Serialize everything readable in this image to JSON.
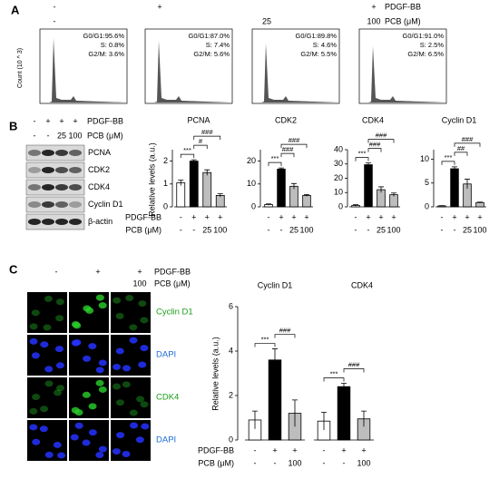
{
  "panel_a": {
    "label": "A",
    "row1": [
      "-",
      "+",
      null,
      "+"
    ],
    "row1_name": "PDGF-BB",
    "row2": [
      "-",
      null,
      "25",
      "100"
    ],
    "row2_name": "PCB (μM)",
    "y_label": "Count (10 ^ 3)",
    "histograms": [
      [
        "G0/G1:95.6%",
        "S:  0.8%",
        "G2/M:  3.6%"
      ],
      [
        "G0/G1:87.0%",
        "S:  7.4%",
        "G2/M:  5.6%"
      ],
      [
        "G0/G1:89.8%",
        "S:  4.6%",
        "G2/M:  5.5%"
      ],
      [
        "G0/G1:91.0%",
        "S:  2.5%",
        "G2/M:  6.5%"
      ]
    ]
  },
  "panel_b": {
    "label": "B",
    "row1": [
      "-",
      "+",
      "+",
      "+"
    ],
    "row1_name": "PDGF-BB",
    "row2": [
      "-",
      "-",
      "25",
      "100"
    ],
    "row2_name": "PCB (μM)",
    "bands": [
      "PCNA",
      "CDK2",
      "CDK4",
      "Cyclin D1",
      "β-actin"
    ],
    "chart_row_names": [
      "PDGF-BB",
      "PCB (μM)"
    ]
  },
  "panel_c": {
    "label": "C",
    "row1": [
      "-",
      "+",
      "+"
    ],
    "row1_name": "PDGF-BB",
    "row2": [
      null,
      null,
      "100"
    ],
    "row2_name": "PCB (μM)",
    "stains": [
      "Cyclin D1",
      "DAPI",
      "CDK4",
      "DAPI"
    ],
    "chart_row_names": [
      "PDGF-BB",
      "PCB (μM)"
    ]
  },
  "chart_data": [
    {
      "type": "bar",
      "title": "PCNA",
      "y_label": "Relative levels (a.u.)",
      "categories": [
        "-",
        "+",
        "+",
        "+"
      ],
      "categories2": [
        "-",
        "-",
        "25",
        "100"
      ],
      "values": [
        1.05,
        2.0,
        1.5,
        0.5
      ],
      "errors": [
        0.12,
        0.06,
        0.12,
        0.07
      ],
      "colors": [
        "#ffffff",
        "#000000",
        "#bdbdbd",
        "#bdbdbd"
      ],
      "ylim": [
        0,
        2.5
      ],
      "yticks": [
        0,
        1,
        2
      ],
      "annotations": [
        "***",
        "#",
        "###"
      ]
    },
    {
      "type": "bar",
      "title": "CDK2",
      "categories": [
        "-",
        "+",
        "+",
        "+"
      ],
      "categories2": [
        "-",
        "-",
        "25",
        "100"
      ],
      "values": [
        1,
        16.5,
        9,
        5
      ],
      "errors": [
        0.3,
        0.5,
        1.2,
        0.4
      ],
      "colors": [
        "#ffffff",
        "#000000",
        "#bdbdbd",
        "#bdbdbd"
      ],
      "ylim": [
        0,
        25
      ],
      "yticks": [
        0,
        10,
        20
      ],
      "annotations": [
        "***",
        "###",
        "###"
      ]
    },
    {
      "type": "bar",
      "title": "CDK4",
      "categories": [
        "-",
        "+",
        "+",
        "+"
      ],
      "categories2": [
        "-",
        "-",
        "25",
        "100"
      ],
      "values": [
        1,
        29.5,
        12,
        8.5
      ],
      "errors": [
        0.5,
        1.2,
        2,
        1.2
      ],
      "colors": [
        "#ffffff",
        "#000000",
        "#bdbdbd",
        "#bdbdbd"
      ],
      "ylim": [
        0,
        40
      ],
      "yticks": [
        0,
        10,
        20,
        30,
        40
      ],
      "annotations": [
        "***",
        "###",
        "###"
      ]
    },
    {
      "type": "bar",
      "title": "Cyclin D1",
      "categories": [
        "-",
        "+",
        "+",
        "+"
      ],
      "categories2": [
        "-",
        "-",
        "25",
        "100"
      ],
      "values": [
        0.2,
        8,
        4.8,
        0.9
      ],
      "errors": [
        0.05,
        0.4,
        1,
        0.1
      ],
      "colors": [
        "#ffffff",
        "#000000",
        "#bdbdbd",
        "#bdbdbd"
      ],
      "ylim": [
        0,
        12
      ],
      "yticks": [
        0,
        5,
        10
      ],
      "annotations": [
        "***",
        "##",
        "###"
      ]
    },
    {
      "type": "grouped_bar",
      "y_label": "Relative levels (a.u.)",
      "colors": [
        "#ffffff",
        "#000000",
        "#bdbdbd"
      ],
      "ylim": [
        0,
        6
      ],
      "yticks": [
        0,
        2,
        4,
        6
      ],
      "groups": [
        {
          "name": "Cyclin D1",
          "categories": [
            "-",
            "+",
            "+"
          ],
          "categories2": [
            "-",
            "-",
            "100"
          ],
          "values": [
            0.9,
            3.6,
            1.2
          ],
          "errors": [
            0.4,
            0.5,
            0.6
          ],
          "annotations": [
            "***",
            "###"
          ]
        },
        {
          "name": "CDK4",
          "categories": [
            "-",
            "+",
            "+"
          ],
          "categories2": [
            "-",
            "-",
            "100"
          ],
          "values": [
            0.85,
            2.4,
            0.95
          ],
          "errors": [
            0.4,
            0.15,
            0.35
          ],
          "annotations": [
            "***",
            "###"
          ]
        }
      ]
    }
  ]
}
